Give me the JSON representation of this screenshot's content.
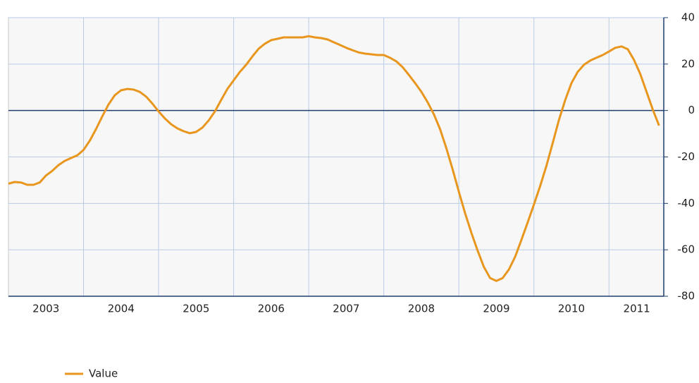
{
  "chart_data": {
    "type": "line",
    "x": [
      2003,
      2003.083,
      2003.167,
      2003.25,
      2003.333,
      2003.417,
      2003.5,
      2003.583,
      2003.667,
      2003.75,
      2003.833,
      2003.917,
      2004,
      2004.083,
      2004.167,
      2004.25,
      2004.333,
      2004.417,
      2004.5,
      2004.583,
      2004.667,
      2004.75,
      2004.833,
      2004.917,
      2005,
      2005.083,
      2005.167,
      2005.25,
      2005.333,
      2005.417,
      2005.5,
      2005.583,
      2005.667,
      2005.75,
      2005.833,
      2005.917,
      2006,
      2006.083,
      2006.167,
      2006.25,
      2006.333,
      2006.417,
      2006.5,
      2006.583,
      2006.667,
      2006.75,
      2006.833,
      2006.917,
      2007,
      2007.083,
      2007.167,
      2007.25,
      2007.333,
      2007.417,
      2007.5,
      2007.583,
      2007.667,
      2007.75,
      2007.833,
      2007.917,
      2008,
      2008.083,
      2008.167,
      2008.25,
      2008.333,
      2008.417,
      2008.5,
      2008.583,
      2008.667,
      2008.75,
      2008.833,
      2008.917,
      2009,
      2009.083,
      2009.167,
      2009.25,
      2009.333,
      2009.417,
      2009.5,
      2009.583,
      2009.667,
      2009.75,
      2009.833,
      2009.917,
      2010,
      2010.083,
      2010.167,
      2010.25,
      2010.333,
      2010.417,
      2010.5,
      2010.583,
      2010.667,
      2010.75,
      2010.833,
      2010.917,
      2011,
      2011.083,
      2011.167,
      2011.25,
      2011.333,
      2011.417,
      2011.5,
      2011.583,
      2011.667
    ],
    "series": [
      {
        "name": "Value",
        "color": "#e8961e",
        "values": [
          -31.5,
          -30.8,
          -31,
          -32,
          -32,
          -31,
          -28,
          -26,
          -23.5,
          -21.7,
          -20.5,
          -19.3,
          -17,
          -13,
          -8,
          -2.5,
          2.6,
          6.6,
          8.7,
          9.3,
          9,
          8,
          6,
          3,
          -0.4,
          -3.4,
          -5.9,
          -7.7,
          -8.9,
          -9.8,
          -9.2,
          -7.4,
          -4.3,
          -0.4,
          4.5,
          9.3,
          13,
          16.6,
          19.7,
          23.3,
          26.6,
          28.8,
          30.3,
          30.9,
          31.5,
          31.5,
          31.5,
          31.5,
          32,
          31.5,
          31.2,
          30.6,
          29.4,
          28.2,
          27,
          26,
          25,
          24.5,
          24.2,
          23.9,
          23.9,
          22.7,
          21.2,
          18.7,
          15.4,
          11.8,
          8.1,
          3.6,
          -1.6,
          -8,
          -16.2,
          -25.3,
          -35,
          -44.2,
          -52.7,
          -60.3,
          -67.3,
          -72.2,
          -73.4,
          -72.2,
          -68.5,
          -63,
          -55.8,
          -48.2,
          -40.5,
          -32.6,
          -23.8,
          -14.1,
          -4.1,
          4.5,
          11.8,
          16.6,
          19.7,
          21.5,
          22.7,
          23.9,
          25.4,
          27,
          27.6,
          26.4,
          21.8,
          15.7,
          8.1,
          0.5,
          -6.5
        ]
      }
    ],
    "xlim": [
      2003,
      2011.73
    ],
    "xticks": [
      {
        "value": 2003.5,
        "label": "2003"
      },
      {
        "value": 2004.5,
        "label": "2004"
      },
      {
        "value": 2005.5,
        "label": "2005"
      },
      {
        "value": 2006.5,
        "label": "2006"
      },
      {
        "value": 2007.5,
        "label": "2007"
      },
      {
        "value": 2008.5,
        "label": "2008"
      },
      {
        "value": 2009.5,
        "label": "2009"
      },
      {
        "value": 2010.5,
        "label": "2010"
      },
      {
        "value": 2011.37,
        "label": "2011"
      }
    ],
    "xgrid": [
      2004,
      2005,
      2006,
      2007,
      2008,
      2009,
      2010,
      2011
    ],
    "ylim": [
      -80,
      40
    ],
    "yticks": [
      -80,
      -60,
      -40,
      -20,
      0,
      20,
      40
    ],
    "grid": true,
    "legend": "bottom-left"
  }
}
